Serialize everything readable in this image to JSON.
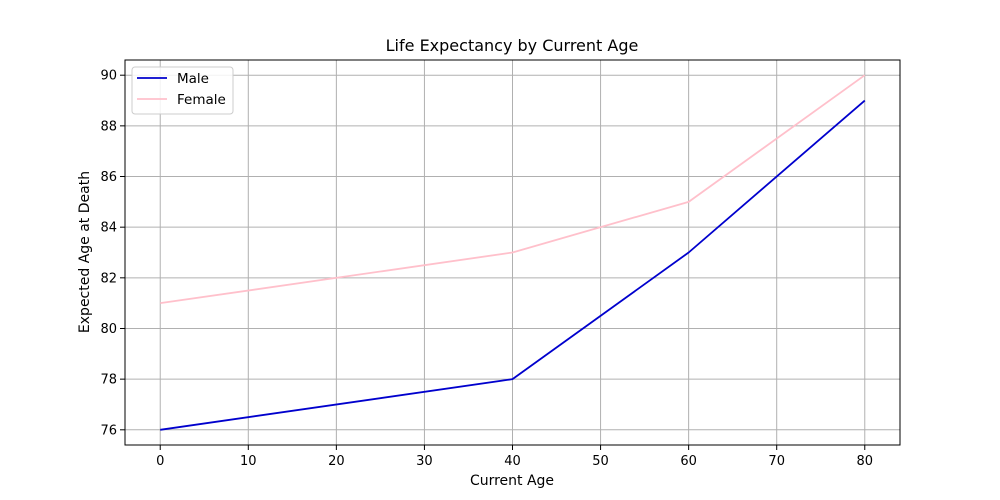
{
  "chart_data": {
    "type": "line",
    "title": "Life Expectancy by Current Age",
    "xlabel": "Current Age",
    "ylabel": "Expected Age at Death",
    "xlim": [
      -4,
      84
    ],
    "ylim": [
      75.4,
      90.6
    ],
    "x_ticks": [
      0,
      10,
      20,
      30,
      40,
      50,
      60,
      70,
      80
    ],
    "y_ticks": [
      76,
      78,
      80,
      82,
      84,
      86,
      88,
      90
    ],
    "grid": true,
    "legend_position": "upper-left",
    "series": [
      {
        "name": "Male",
        "color": "#0000cd",
        "x": [
          0,
          40,
          60,
          80
        ],
        "y": [
          76,
          78,
          83,
          89
        ]
      },
      {
        "name": "Female",
        "color": "#ffc0cb",
        "x": [
          0,
          40,
          60,
          80
        ],
        "y": [
          81,
          83,
          85,
          90
        ]
      }
    ]
  }
}
